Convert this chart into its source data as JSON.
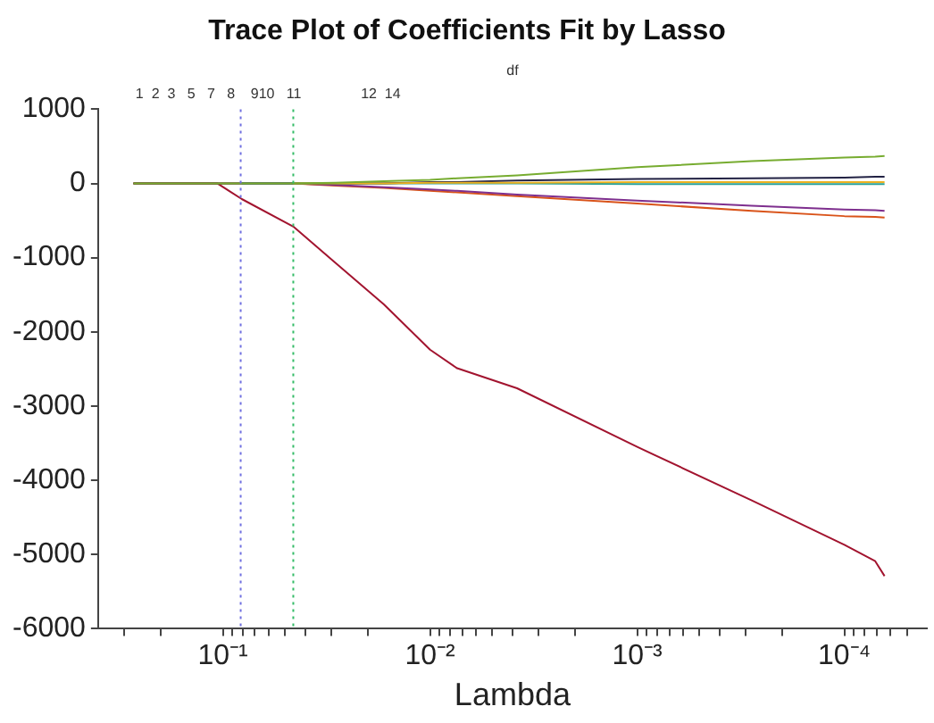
{
  "chart_data": {
    "type": "line",
    "title": "Trace Plot of Coefficients Fit by Lasso",
    "xlabel": "Lambda",
    "log": "x",
    "grid": false,
    "legend": false,
    "marker": "none",
    "line_style": "solid",
    "xlim": [
      0.4,
      4e-05
    ],
    "ylim": [
      -6000,
      1000
    ],
    "yticks": [
      -6000,
      -5000,
      -4000,
      -3000,
      -2000,
      -1000,
      0,
      1000
    ],
    "xticks": [
      {
        "value": 0.3,
        "label": null
      },
      {
        "value": 0.2,
        "label": null
      },
      {
        "value": 0.1,
        "label": "10⁻¹"
      },
      {
        "value": 0.09,
        "label": null
      },
      {
        "value": 0.08,
        "label": null
      },
      {
        "value": 0.07,
        "label": null
      },
      {
        "value": 0.06,
        "label": null
      },
      {
        "value": 0.05,
        "label": null
      },
      {
        "value": 0.04,
        "label": null
      },
      {
        "value": 0.03,
        "label": null
      },
      {
        "value": 0.02,
        "label": null
      },
      {
        "value": 0.01,
        "label": "10⁻²"
      },
      {
        "value": 0.009,
        "label": null
      },
      {
        "value": 0.008,
        "label": null
      },
      {
        "value": 0.007,
        "label": null
      },
      {
        "value": 0.006,
        "label": null
      },
      {
        "value": 0.005,
        "label": null
      },
      {
        "value": 0.004,
        "label": null
      },
      {
        "value": 0.003,
        "label": null
      },
      {
        "value": 0.002,
        "label": null
      },
      {
        "value": 0.001,
        "label": "10⁻³"
      },
      {
        "value": 0.0009,
        "label": null
      },
      {
        "value": 0.0008,
        "label": null
      },
      {
        "value": 0.0007,
        "label": null
      },
      {
        "value": 0.0006,
        "label": null
      },
      {
        "value": 0.0005,
        "label": null
      },
      {
        "value": 0.0004,
        "label": null
      },
      {
        "value": 0.0003,
        "label": null
      },
      {
        "value": 0.0002,
        "label": null
      },
      {
        "value": 0.0001,
        "label": "10⁻⁴"
      },
      {
        "value": 9e-05,
        "label": null
      },
      {
        "value": 8e-05,
        "label": null
      },
      {
        "value": 7e-05,
        "label": null
      },
      {
        "value": 6e-05,
        "label": null
      },
      {
        "value": 5e-05,
        "label": null
      }
    ],
    "annotations": [
      "df",
      "1  2  3   5   7   8    910   11               12  14"
    ],
    "x": [
      0.27,
      0.106,
      0.081,
      0.0457,
      0.0286,
      0.0167,
      0.01,
      0.0074,
      0.0038,
      0.001,
      0.00028,
      0.0001,
      7.1e-05,
      6.4e-05
    ],
    "series": [
      {
        "color": "#77ac30",
        "values": [
          0,
          0,
          0,
          0,
          10,
          30,
          50,
          70,
          110,
          220,
          300,
          350,
          360,
          370
        ]
      },
      {
        "color": "#edb120",
        "values": [
          null,
          null,
          null,
          0,
          0,
          0,
          10,
          10,
          10,
          20,
          20,
          20,
          20,
          20
        ]
      },
      {
        "color": "#222244",
        "values": [
          0,
          0,
          0,
          0,
          0,
          0,
          20,
          20,
          40,
          60,
          70,
          80,
          90,
          90
        ]
      },
      {
        "color": "#2aa198",
        "values": [
          null,
          null,
          0,
          0,
          0,
          0,
          0,
          0,
          0,
          -10,
          -10,
          -10,
          -10,
          -10
        ]
      },
      {
        "color": "#7e2f8e",
        "values": [
          null,
          null,
          null,
          0,
          -20,
          -50,
          -80,
          -100,
          -150,
          -230,
          -300,
          -350,
          -360,
          -370
        ]
      },
      {
        "color": "#d95319",
        "values": [
          0,
          0,
          0,
          0,
          -30,
          -60,
          -100,
          -120,
          -170,
          -270,
          -370,
          -440,
          -450,
          -460
        ]
      },
      {
        "color": "#a2142f",
        "values": [
          0,
          0,
          -210,
          -580,
          -1070,
          -1630,
          -2240,
          -2490,
          -2760,
          -3550,
          -4270,
          -4870,
          -5090,
          -5290
        ]
      }
    ],
    "ref_lines": [
      {
        "axis": "x",
        "value": 0.082,
        "color": "#6f6fe0",
        "line_style": "dotted"
      },
      {
        "axis": "x",
        "value": 0.0457,
        "color": "#33bb66",
        "line_style": "dotted"
      }
    ]
  }
}
